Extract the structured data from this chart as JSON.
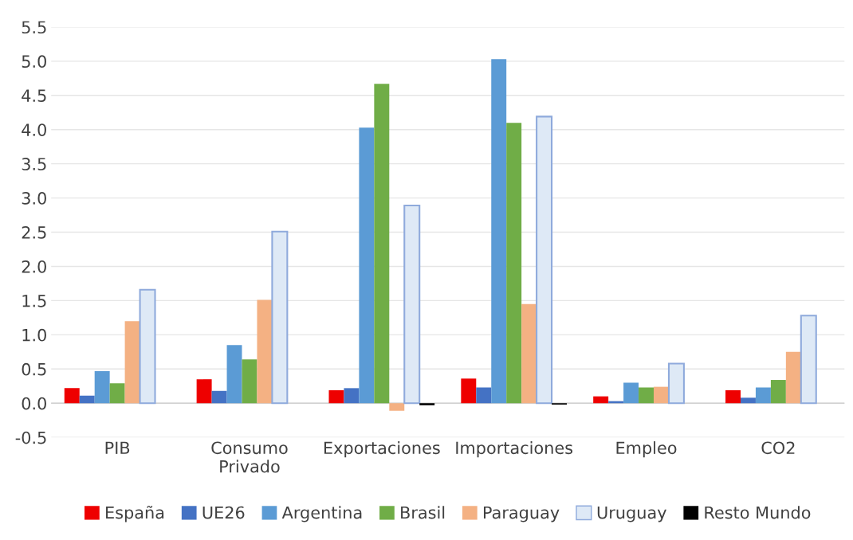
{
  "chart_data": {
    "type": "bar",
    "categories": [
      "PIB",
      "Consumo Privado",
      "Exportaciones",
      "Importaciones",
      "Empleo",
      "CO2"
    ],
    "series": [
      {
        "name": "España",
        "color": "#ee0000",
        "values": [
          0.22,
          0.35,
          0.19,
          0.36,
          0.1,
          0.19
        ]
      },
      {
        "name": "UE26",
        "color": "#4472c4",
        "values": [
          0.11,
          0.18,
          0.22,
          0.23,
          0.03,
          0.08
        ]
      },
      {
        "name": "Argentina",
        "color": "#5b9bd5",
        "values": [
          0.47,
          0.85,
          4.03,
          5.03,
          0.3,
          0.23
        ]
      },
      {
        "name": "Brasil",
        "color": "#70ad47",
        "values": [
          0.29,
          0.64,
          4.67,
          4.1,
          0.23,
          0.34
        ]
      },
      {
        "name": "Paraguay",
        "color": "#f4b183",
        "values": [
          1.2,
          1.51,
          -0.11,
          1.45,
          0.24,
          0.75
        ]
      },
      {
        "name": "Uruguay",
        "color": "#dee9f6",
        "values": [
          1.66,
          2.51,
          2.89,
          4.19,
          0.58,
          1.28
        ]
      },
      {
        "name": "Resto Mundo",
        "color": "#000000",
        "values": [
          0,
          0,
          -0.03,
          -0.02,
          0,
          0
        ]
      }
    ],
    "ylim": [
      -0.5,
      5.5
    ],
    "yticks": [
      {
        "value": -0.5,
        "label": "-0.5"
      },
      {
        "value": 0,
        "label": "0.0"
      },
      {
        "value": 0.5,
        "label": "0.5"
      },
      {
        "value": 1,
        "label": "1.0"
      },
      {
        "value": 1.5,
        "label": "1.5"
      },
      {
        "value": 2,
        "label": "2.0"
      },
      {
        "value": 2.5,
        "label": "2.5"
      },
      {
        "value": 3,
        "label": "3.0"
      },
      {
        "value": 3.5,
        "label": "3.5"
      },
      {
        "value": 4,
        "label": "4.0"
      },
      {
        "value": 4.5,
        "label": "4.5"
      },
      {
        "value": 5,
        "label": "5.0"
      },
      {
        "value": 5.5,
        "label": "5.5"
      }
    ],
    "grid": "y",
    "legend": "bottom"
  }
}
